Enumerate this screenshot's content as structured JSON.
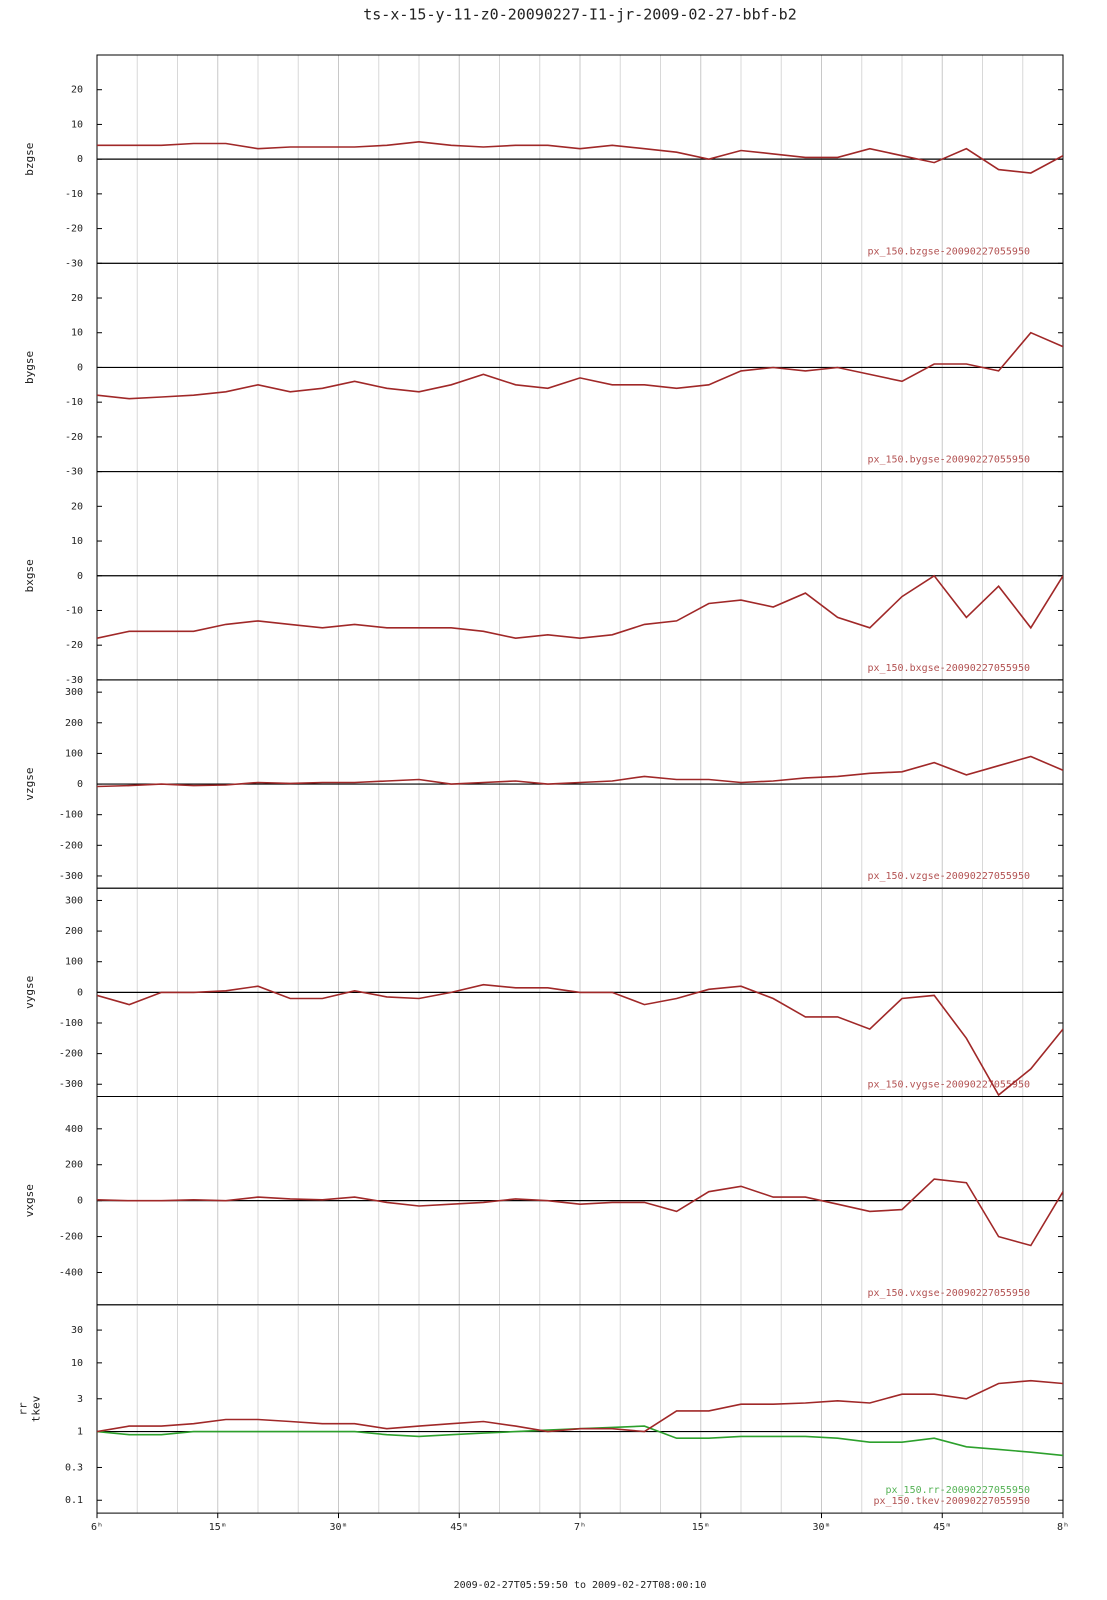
{
  "title": "ts-x-15-y-11-z0-20090227-I1-jr-2009-02-27-bbf-b2",
  "x_axis": {
    "xlim": [
      0,
      120
    ],
    "xticks": [
      {
        "value": 0,
        "label": "6ʰ"
      },
      {
        "value": 15,
        "label": "15ᵐ"
      },
      {
        "value": 30,
        "label": "30ᵐ"
      },
      {
        "value": 45,
        "label": "45ᵐ"
      },
      {
        "value": 60,
        "label": "7ʰ"
      },
      {
        "value": 75,
        "label": "15ᵐ"
      },
      {
        "value": 90,
        "label": "30ᵐ"
      },
      {
        "value": 105,
        "label": "45ᵐ"
      },
      {
        "value": 120,
        "label": "8ʰ"
      }
    ],
    "xgrid": [
      5,
      10,
      20,
      25,
      35,
      40,
      50,
      55,
      65,
      70,
      80,
      85,
      95,
      100,
      110,
      115
    ],
    "label": "2009-02-27T05:59:50 to 2009-02-27T08:00:10"
  },
  "chart_data": [
    {
      "type": "line",
      "ylabel": "bzgse",
      "ylim": [
        -30,
        30
      ],
      "yticks": [
        20,
        10,
        0,
        -10,
        -20,
        -30
      ],
      "hline": 0,
      "x": [
        0,
        4,
        8,
        12,
        16,
        20,
        24,
        28,
        32,
        36,
        40,
        44,
        48,
        52,
        56,
        60,
        64,
        68,
        72,
        76,
        80,
        84,
        88,
        92,
        96,
        100,
        104,
        108,
        112,
        116,
        120
      ],
      "series": [
        {
          "color": "#a02828",
          "values": [
            4,
            4,
            4,
            4.5,
            4.5,
            3,
            3.5,
            3.5,
            3.5,
            4,
            5,
            4,
            3.5,
            4,
            4,
            3,
            4,
            3,
            2,
            0,
            2.5,
            1.5,
            0.5,
            0.5,
            3,
            1,
            -1,
            3,
            -3,
            -4,
            1
          ]
        }
      ],
      "annotations": [
        "px_150.bzgse-20090227055950"
      ]
    },
    {
      "type": "line",
      "ylabel": "bygse",
      "ylim": [
        -30,
        30
      ],
      "yticks": [
        20,
        10,
        0,
        -10,
        -20,
        -30
      ],
      "hline": 0,
      "x": [
        0,
        4,
        8,
        12,
        16,
        20,
        24,
        28,
        32,
        36,
        40,
        44,
        48,
        52,
        56,
        60,
        64,
        68,
        72,
        76,
        80,
        84,
        88,
        92,
        96,
        100,
        104,
        108,
        112,
        116,
        120
      ],
      "series": [
        {
          "color": "#a02828",
          "values": [
            -8,
            -9,
            -8.5,
            -8,
            -7,
            -5,
            -7,
            -6,
            -4,
            -6,
            -7,
            -5,
            -2,
            -5,
            -6,
            -3,
            -5,
            -5,
            -6,
            -5,
            -1,
            0,
            -1,
            0,
            -2,
            -4,
            1,
            1,
            -1,
            10,
            6
          ]
        }
      ],
      "annotations": [
        "px_150.bygse-20090227055950"
      ]
    },
    {
      "type": "line",
      "ylabel": "bxgse",
      "ylim": [
        -30,
        30
      ],
      "yticks": [
        20,
        10,
        0,
        -10,
        -20,
        -30
      ],
      "hline": 0,
      "x": [
        0,
        4,
        8,
        12,
        16,
        20,
        24,
        28,
        32,
        36,
        40,
        44,
        48,
        52,
        56,
        60,
        64,
        68,
        72,
        76,
        80,
        84,
        88,
        92,
        96,
        100,
        104,
        108,
        112,
        116,
        120
      ],
      "series": [
        {
          "color": "#a02828",
          "values": [
            -18,
            -16,
            -16,
            -16,
            -14,
            -13,
            -14,
            -15,
            -14,
            -15,
            -15,
            -15,
            -16,
            -18,
            -17,
            -18,
            -17,
            -14,
            -13,
            -8,
            -7,
            -9,
            -5,
            -12,
            -15,
            -6,
            0,
            -12,
            -3,
            -15,
            0
          ]
        }
      ],
      "annotations": [
        "px_150.bxgse-20090227055950"
      ]
    },
    {
      "type": "line",
      "ylabel": "vzgse",
      "ylim": [
        -340,
        340
      ],
      "yticks": [
        300,
        200,
        100,
        0,
        -100,
        -200,
        -300
      ],
      "hline": 0,
      "x": [
        0,
        4,
        8,
        12,
        16,
        20,
        24,
        28,
        32,
        36,
        40,
        44,
        48,
        52,
        56,
        60,
        64,
        68,
        72,
        76,
        80,
        84,
        88,
        92,
        96,
        100,
        104,
        108,
        112,
        116,
        120
      ],
      "series": [
        {
          "color": "#a02828",
          "values": [
            -8,
            -5,
            0,
            -5,
            -3,
            5,
            2,
            5,
            5,
            10,
            15,
            0,
            5,
            10,
            0,
            5,
            10,
            25,
            15,
            15,
            5,
            10,
            20,
            25,
            35,
            40,
            70,
            30,
            60,
            90,
            45
          ]
        }
      ],
      "annotations": [
        "px_150.vzgse-20090227055950"
      ]
    },
    {
      "type": "line",
      "ylabel": "vygse",
      "ylim": [
        -340,
        340
      ],
      "yticks": [
        300,
        200,
        100,
        0,
        -100,
        -200,
        -300
      ],
      "hline": 0,
      "x": [
        0,
        4,
        8,
        12,
        16,
        20,
        24,
        28,
        32,
        36,
        40,
        44,
        48,
        52,
        56,
        60,
        64,
        68,
        72,
        76,
        80,
        84,
        88,
        92,
        96,
        100,
        104,
        108,
        112,
        116,
        120
      ],
      "series": [
        {
          "color": "#a02828",
          "values": [
            -10,
            -40,
            0,
            0,
            5,
            20,
            -20,
            -20,
            5,
            -15,
            -20,
            0,
            25,
            15,
            15,
            0,
            0,
            -40,
            -20,
            10,
            20,
            -20,
            -80,
            -80,
            -120,
            -20,
            -10,
            -150,
            -335,
            -250,
            -120
          ]
        }
      ],
      "annotations": [
        "px_150.vygse-20090227055950"
      ]
    },
    {
      "type": "line",
      "ylabel": "vxgse",
      "ylim": [
        -580,
        580
      ],
      "yticks": [
        400,
        200,
        0,
        -200,
        -400
      ],
      "hline": 0,
      "x": [
        0,
        4,
        8,
        12,
        16,
        20,
        24,
        28,
        32,
        36,
        40,
        44,
        48,
        52,
        56,
        60,
        64,
        68,
        72,
        76,
        80,
        84,
        88,
        92,
        96,
        100,
        104,
        108,
        112,
        116,
        120
      ],
      "series": [
        {
          "color": "#a02828",
          "values": [
            5,
            0,
            0,
            5,
            0,
            20,
            10,
            5,
            20,
            -10,
            -30,
            -20,
            -10,
            10,
            0,
            -20,
            -10,
            -10,
            -60,
            50,
            80,
            20,
            20,
            -20,
            -60,
            -50,
            120,
            100,
            -200,
            -250,
            50
          ]
        }
      ],
      "annotations": [
        "px_150.vxgse-20090227055950"
      ]
    },
    {
      "type": "line",
      "ylabel": [
        "rr",
        "tkev"
      ],
      "ylog": true,
      "ylim": [
        0.065,
        70
      ],
      "yticks": [
        30,
        10,
        3,
        1,
        0.3,
        0.1
      ],
      "hline": 1,
      "x": [
        0,
        4,
        8,
        12,
        16,
        20,
        24,
        28,
        32,
        36,
        40,
        44,
        48,
        52,
        56,
        60,
        64,
        68,
        72,
        76,
        80,
        84,
        88,
        92,
        96,
        100,
        104,
        108,
        112,
        116,
        120
      ],
      "series": [
        {
          "color": "#2ca02c",
          "values": [
            1,
            0.9,
            0.9,
            1,
            1,
            1,
            1,
            1,
            1,
            0.9,
            0.85,
            0.9,
            0.95,
            1,
            1.05,
            1.1,
            1.15,
            1.2,
            0.8,
            0.8,
            0.85,
            0.85,
            0.85,
            0.8,
            0.7,
            0.7,
            0.8,
            0.6,
            0.55,
            0.5,
            0.45
          ]
        },
        {
          "color": "#a02828",
          "values": [
            1,
            1.2,
            1.2,
            1.3,
            1.5,
            1.5,
            1.4,
            1.3,
            1.3,
            1.1,
            1.2,
            1.3,
            1.4,
            1.2,
            1,
            1.1,
            1.1,
            1,
            2,
            2,
            2.5,
            2.5,
            2.6,
            2.8,
            2.6,
            3.5,
            3.5,
            3,
            5,
            5.5,
            5
          ]
        }
      ],
      "annotations": [
        "px_150.rr-20090227055950",
        "px_150.tkev-20090227055950"
      ]
    }
  ]
}
